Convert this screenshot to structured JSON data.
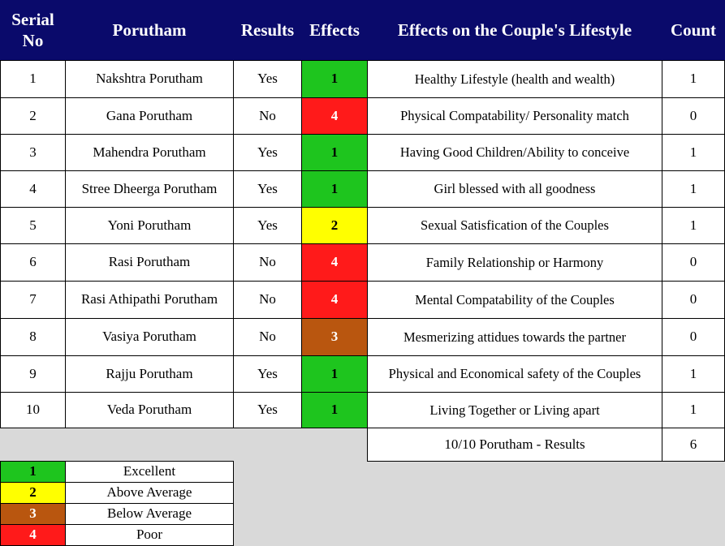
{
  "table": {
    "header": [
      "Serial No",
      "Porutham",
      "Results",
      "Effects",
      "Effects on the Couple's Lifestyle",
      "Count"
    ],
    "rows": [
      [
        1,
        "Nakshtra Porutham",
        "Yes",
        1,
        "Healthy Lifestyle (health and wealth)",
        1
      ],
      [
        2,
        "Gana Porutham",
        "No",
        4,
        "Physical Compatability/ Personality match",
        0
      ],
      [
        3,
        "Mahendra Porutham",
        "Yes",
        1,
        "Having Good Children/Ability to conceive",
        1
      ],
      [
        4,
        "Stree Dheerga Porutham",
        "Yes",
        1,
        "Girl blessed with all goodness",
        1
      ],
      [
        5,
        "Yoni Porutham",
        "Yes",
        2,
        "Sexual Satisfication of the Couples",
        1
      ],
      [
        6,
        "Rasi Porutham",
        "No",
        4,
        "Family Relationship or Harmony",
        0
      ],
      [
        7,
        "Rasi Athipathi Porutham",
        "No",
        4,
        "Mental Compatability of the Couples",
        0
      ],
      [
        8,
        "Vasiya Porutham",
        "No",
        3,
        "Mesmerizing attidues towards the partner",
        0
      ],
      [
        9,
        "Rajju Porutham",
        "Yes",
        1,
        "Physical and Economical safety of the Couples",
        1
      ],
      [
        10,
        "Veda Porutham",
        "Yes",
        1,
        "Living Together or Living apart",
        1
      ]
    ],
    "total": {
      "label": "10/10 Porutham - Results",
      "count": 6
    }
  },
  "legend": [
    {
      "value": 1,
      "label": "Excellent",
      "color": "#1ec51e",
      "text_color": "#000000"
    },
    {
      "value": 2,
      "label": "Above Average",
      "color": "#ffff00",
      "text_color": "#000000"
    },
    {
      "value": 3,
      "label": "Below Average",
      "color": "#b9560f",
      "text_color": "#ffffff"
    },
    {
      "value": 4,
      "label": "Poor",
      "color": "#ff1a1a",
      "text_color": "#ffffff"
    }
  ]
}
